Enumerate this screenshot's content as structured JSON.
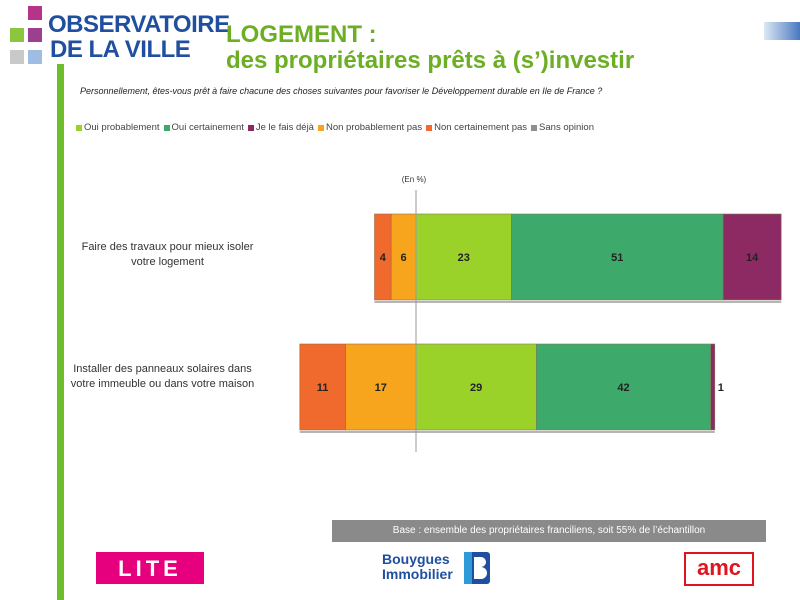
{
  "header": {
    "logo_line1": "OBSERVATOIRE",
    "logo_line2": "DE LA VILLE",
    "title_line1": "LOGEMENT :",
    "title_line2": "des propriétaires prêts à (s’)investir"
  },
  "question": "Personnellement, êtes-vous prêt à faire chacune des choses suivantes pour favoriser le Développement durable en Ile de France ?",
  "colors": {
    "oui_probablement": "#9bd22a",
    "oui_certainement": "#3daa6b",
    "je_le_fais_deja": "#8e2a63",
    "non_probablement_pas": "#f7a51c",
    "non_certainement_pas": "#ef6a2c",
    "sans_opinion": "#8f8f8f",
    "logo_blue": "#1f4f9e",
    "title_green": "#6cae24"
  },
  "chart_data": {
    "type": "bar",
    "orientation": "horizontal",
    "stacked": "diverging",
    "unit_label": "(En %)",
    "legend": [
      {
        "name": "Oui probablement",
        "color_key": "oui_probablement"
      },
      {
        "name": "Oui certainement",
        "color_key": "oui_certainement"
      },
      {
        "name": "Je le fais déjà",
        "color_key": "je_le_fais_deja"
      },
      {
        "name": "Non probablement pas",
        "color_key": "non_probablement_pas"
      },
      {
        "name": "Non certainement pas",
        "color_key": "non_certainement_pas"
      },
      {
        "name": "Sans opinion",
        "color_key": "sans_opinion"
      }
    ],
    "categories": [
      {
        "label": "Faire des travaux pour mieux isoler votre logement",
        "negative": [
          {
            "series": "Non certainement pas",
            "value": 4,
            "color_key": "non_certainement_pas"
          },
          {
            "series": "Non probablement pas",
            "value": 6,
            "color_key": "non_probablement_pas"
          }
        ],
        "positive": [
          {
            "series": "Oui probablement",
            "value": 23,
            "color_key": "oui_probablement"
          },
          {
            "series": "Oui certainement",
            "value": 51,
            "color_key": "oui_certainement"
          },
          {
            "series": "Je le fais déjà",
            "value": 14,
            "color_key": "je_le_fais_deja"
          }
        ]
      },
      {
        "label": "Installer des panneaux solaires dans votre immeuble ou dans votre maison",
        "negative": [
          {
            "series": "Non certainement pas",
            "value": 11,
            "color_key": "non_certainement_pas"
          },
          {
            "series": "Non probablement pas",
            "value": 17,
            "color_key": "non_probablement_pas"
          }
        ],
        "positive": [
          {
            "series": "Oui probablement",
            "value": 29,
            "color_key": "oui_probablement"
          },
          {
            "series": "Oui certainement",
            "value": 42,
            "color_key": "oui_certainement"
          },
          {
            "series": "Je le fais déjà",
            "value": 1,
            "color_key": "je_le_fais_deja"
          }
        ]
      }
    ]
  },
  "base_note": "Base : ensemble des propriétaires franciliens, soit 55% de l’échantillon",
  "footer": {
    "lite_logo": "LITE",
    "bouygues_line1": "Bouygues",
    "bouygues_line2": "Immobilier",
    "amc_logo": "amc"
  }
}
